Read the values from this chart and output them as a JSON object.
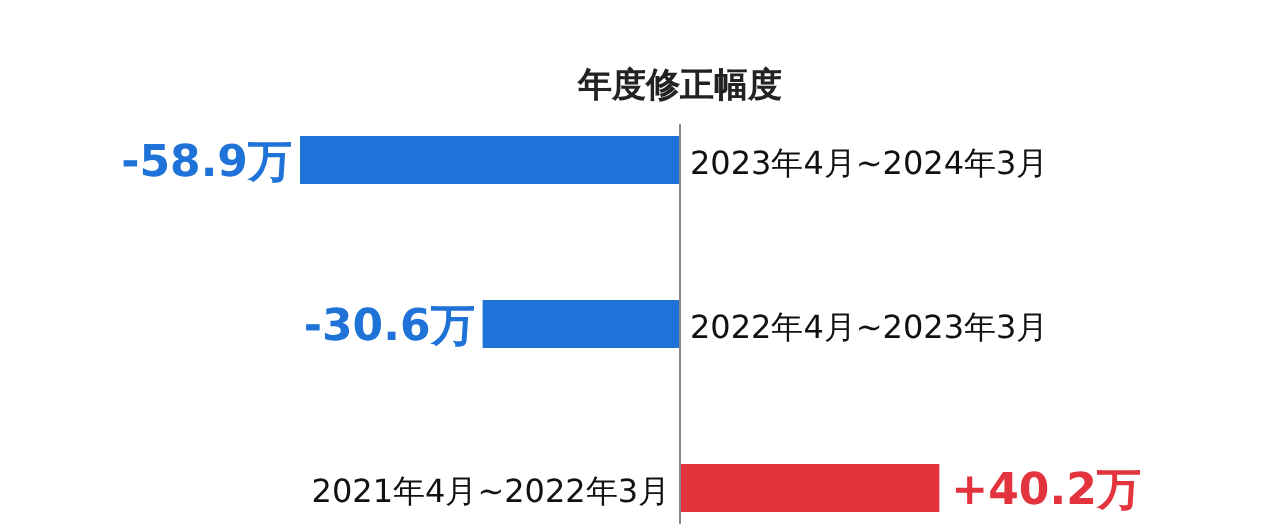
{
  "chart_data": {
    "type": "bar",
    "orientation": "horizontal",
    "title": "年度修正幅度",
    "categories": [
      "2023年4月~2024年3月",
      "2022年4月~2023年3月",
      "2021年4月~2022年3月"
    ],
    "values": [
      -58.9,
      -30.6,
      40.2
    ],
    "colors": [
      "#1f73d8",
      "#1f73d8",
      "#e3343e"
    ],
    "value_labels": [
      "-58.9万",
      "-30.6万",
      "+40.2万"
    ]
  }
}
